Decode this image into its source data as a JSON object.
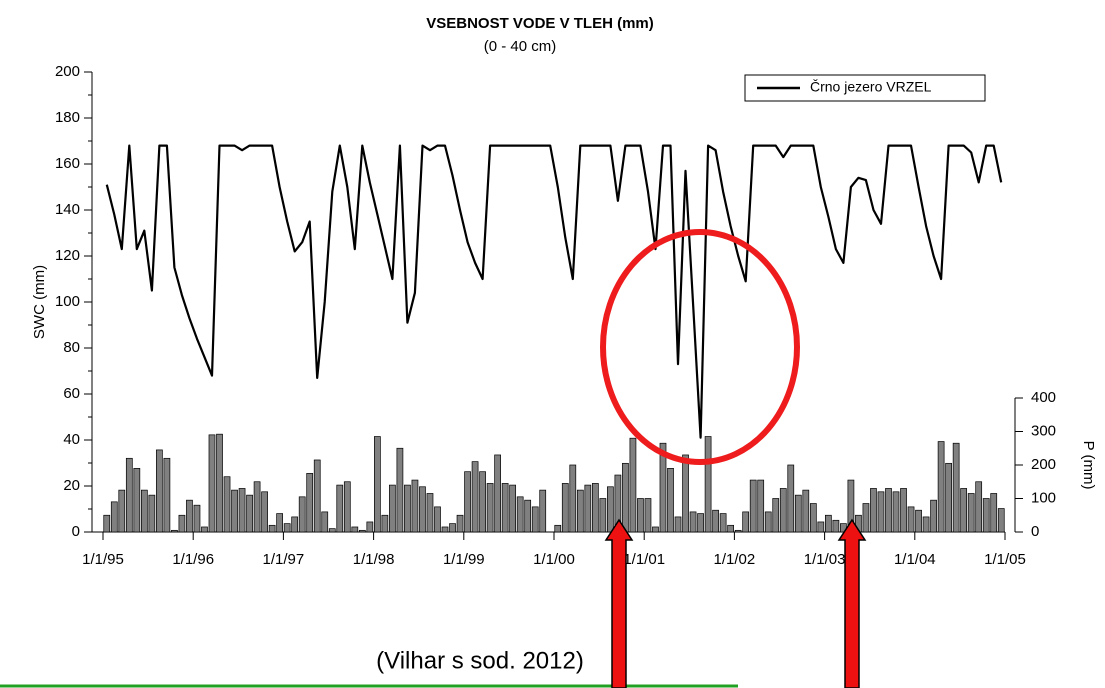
{
  "chart_data": {
    "type": "line",
    "title": "VSEBNOST VODE V TLEH (mm)",
    "subtitle": "(0 - 40 cm)",
    "ylabel": "SWC (mm)",
    "y2label": "P (mm)",
    "source": "(Vilhar s sod. 2012)",
    "xlim": [
      0,
      120
    ],
    "xticks": [
      {
        "value": 0,
        "label": "1/1/95"
      },
      {
        "value": 12,
        "label": "1/1/96"
      },
      {
        "value": 24,
        "label": "1/1/97"
      },
      {
        "value": 36,
        "label": "1/1/98"
      },
      {
        "value": 48,
        "label": "1/1/99"
      },
      {
        "value": 60,
        "label": "1/1/00"
      },
      {
        "value": 72,
        "label": "1/1/01"
      },
      {
        "value": 84,
        "label": "1/1/02"
      },
      {
        "value": 96,
        "label": "1/1/03"
      },
      {
        "value": 108,
        "label": "1/1/04"
      },
      {
        "value": 120,
        "label": "1/1/05"
      }
    ],
    "ylim": [
      0,
      200
    ],
    "yticks": [
      0,
      20,
      40,
      60,
      80,
      100,
      120,
      140,
      160,
      180,
      200
    ],
    "y2lim": [
      0,
      400
    ],
    "y2ticks": [
      0,
      100,
      200,
      300,
      400
    ],
    "legend": "top-right",
    "x": [
      0.5,
      1.5,
      2.5,
      3.5,
      4.5,
      5.5,
      6.5,
      7.5,
      8.5,
      9.5,
      10.5,
      11.5,
      12.5,
      13.5,
      14.5,
      15.5,
      16.5,
      17.5,
      18.5,
      19.5,
      20.5,
      21.5,
      22.5,
      23.5,
      24.5,
      25.5,
      26.5,
      27.5,
      28.5,
      29.5,
      30.5,
      31.5,
      32.5,
      33.5,
      34.5,
      35.5,
      36.5,
      37.5,
      38.5,
      39.5,
      40.5,
      41.5,
      42.5,
      43.5,
      44.5,
      45.5,
      46.5,
      47.5,
      48.5,
      49.5,
      50.5,
      51.5,
      52.5,
      53.5,
      54.5,
      55.5,
      56.5,
      57.5,
      58.5,
      59.5,
      60.5,
      61.5,
      62.5,
      63.5,
      64.5,
      65.5,
      66.5,
      67.5,
      68.5,
      69.5,
      70.5,
      71.5,
      72.5,
      73.5,
      74.5,
      75.5,
      76.5,
      77.5,
      78.5,
      79.5,
      80.5,
      81.5,
      82.5,
      83.5,
      84.5,
      85.5,
      86.5,
      87.5,
      88.5,
      89.5,
      90.5,
      91.5,
      92.5,
      93.5,
      94.5,
      95.5,
      96.5,
      97.5,
      98.5,
      99.5,
      100.5,
      101.5,
      102.5,
      103.5,
      104.5,
      105.5,
      106.5,
      107.5,
      108.5,
      109.5,
      110.5,
      111.5,
      112.5,
      113.5,
      114.5,
      115.5,
      116.5,
      117.5,
      118.5,
      119.5
    ],
    "series": [
      {
        "name": "Črno jezero VRZEL",
        "type": "line",
        "color": "#000000",
        "values": [
          151,
          138,
          123,
          168,
          123,
          131,
          105,
          168,
          168,
          115,
          103,
          93,
          84,
          76,
          68,
          168,
          168,
          168,
          166,
          168,
          168,
          168,
          168,
          150,
          135,
          122,
          126,
          135,
          67,
          100,
          148,
          168,
          150,
          123,
          168,
          152,
          138,
          124,
          110,
          168,
          91,
          104,
          168,
          166,
          168,
          168,
          155,
          140,
          126,
          117,
          110,
          168,
          168,
          168,
          168,
          168,
          168,
          168,
          168,
          168,
          150,
          128,
          110,
          168,
          168,
          168,
          168,
          168,
          144,
          168,
          168,
          168,
          148,
          123,
          168,
          168,
          73,
          157,
          99,
          41,
          168,
          166,
          148,
          133,
          120,
          109,
          168,
          168,
          168,
          168,
          163,
          168,
          168,
          168,
          168,
          150,
          137,
          123,
          117,
          150,
          154,
          153,
          140,
          134,
          168,
          168,
          168,
          168,
          150,
          133,
          120,
          110,
          168,
          168,
          168,
          165,
          152,
          168,
          168,
          152
        ]
      },
      {
        "type": "bar",
        "axis": "y2",
        "color": "#808080",
        "values": [
          50,
          90,
          125,
          220,
          190,
          125,
          110,
          245,
          220,
          5,
          50,
          95,
          80,
          15,
          290,
          292,
          165,
          125,
          130,
          110,
          150,
          120,
          20,
          55,
          25,
          45,
          105,
          175,
          215,
          60,
          10,
          140,
          150,
          15,
          5,
          30,
          285,
          50,
          140,
          250,
          140,
          155,
          135,
          115,
          75,
          15,
          25,
          50,
          180,
          210,
          180,
          145,
          230,
          145,
          140,
          105,
          95,
          75,
          125,
          0,
          20,
          145,
          200,
          125,
          140,
          145,
          100,
          135,
          170,
          205,
          280,
          100,
          100,
          15,
          265,
          190,
          45,
          230,
          60,
          55,
          285,
          65,
          55,
          20,
          5,
          60,
          155,
          155,
          60,
          100,
          130,
          200,
          110,
          125,
          85,
          30,
          50,
          35,
          25,
          155,
          50,
          85,
          130,
          120,
          130,
          120,
          130,
          75,
          65,
          45,
          95,
          270,
          205,
          265,
          130,
          115,
          150,
          100,
          115,
          70
        ]
      }
    ]
  }
}
